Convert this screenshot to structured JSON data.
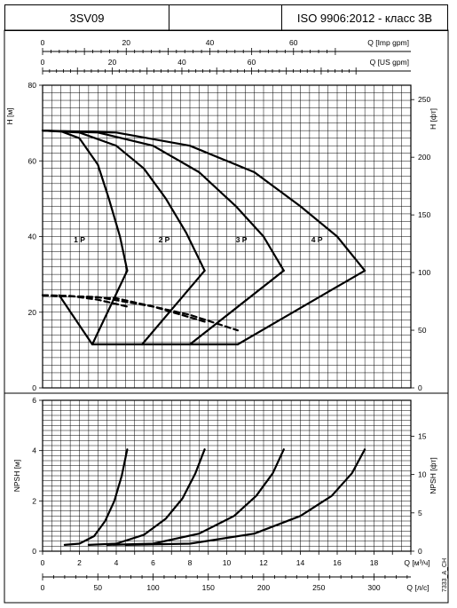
{
  "header": {
    "model": "3SV09",
    "middle": "",
    "standard": "ISO 9906:2012 - класс 3B"
  },
  "side_label": "7333_A_CH",
  "chart_data": [
    {
      "type": "line",
      "id": "head",
      "y_left_label": "H [м]",
      "y_right_label": "H [фт]",
      "ylim": [
        0,
        80
      ],
      "left_ticks": [
        0,
        20,
        40,
        60,
        80
      ],
      "right_ticks": [
        0,
        50,
        100,
        150,
        200,
        250
      ],
      "top_axes": [
        {
          "label": "Q [Imp gpm]",
          "ticks": [
            "0",
            "20",
            "40",
            "60"
          ],
          "values": [
            0,
            20,
            40,
            60
          ]
        },
        {
          "label": "Q [US gpm]",
          "ticks": [
            "0",
            "20",
            "40",
            "60"
          ],
          "values": [
            0,
            20,
            40,
            60
          ]
        }
      ],
      "curve_labels": [
        "1 P",
        "2 P",
        "3 P",
        "4 P"
      ],
      "grid": true,
      "series": [
        {
          "name": "1 P",
          "x": [
            0,
            1.0,
            2.0,
            3.0,
            3.6,
            4.2,
            4.6
          ],
          "y": [
            68,
            67.8,
            66,
            59,
            50,
            40,
            31
          ]
        },
        {
          "name": "2 P",
          "x": [
            0,
            2.0,
            4.0,
            5.5,
            6.7,
            7.8,
            8.8
          ],
          "y": [
            68,
            67.5,
            64,
            58,
            50,
            41,
            31
          ]
        },
        {
          "name": "3 P",
          "x": [
            0,
            3.0,
            6.0,
            8.5,
            10.5,
            12.0,
            13.1
          ],
          "y": [
            68,
            67.5,
            64,
            57,
            48,
            40,
            31
          ]
        },
        {
          "name": "4 P",
          "x": [
            0,
            4.0,
            8.0,
            11.5,
            14.0,
            16.0,
            17.5
          ],
          "y": [
            68,
            67.5,
            64,
            57,
            48,
            40,
            31
          ]
        },
        {
          "name": "efficiency-left",
          "x": [
            0.9,
            2.7,
            5.4,
            8.0,
            10.6
          ],
          "y": [
            24.5,
            11.5,
            11.5,
            11.5,
            11.5
          ]
        },
        {
          "name": "efficiency-right",
          "x": [
            2.7,
            4.6,
            5.4,
            8.8,
            8.0,
            13.1,
            10.6,
            17.5
          ],
          "y": [
            11.5,
            31,
            11.5,
            31,
            11.5,
            31,
            11.5,
            31
          ]
        }
      ],
      "dashed_series": [
        {
          "x": [
            0,
            1.5,
            3.0,
            4.6
          ],
          "y": [
            24.5,
            24.3,
            23.3,
            21.5
          ]
        },
        {
          "x": [
            0,
            3.0,
            6.0,
            8.8
          ],
          "y": [
            24.5,
            24.0,
            21.5,
            17.5
          ]
        },
        {
          "x": [
            0,
            4.0,
            8.0,
            10.6
          ],
          "y": [
            24.5,
            23.7,
            19.3,
            15.2
          ]
        }
      ]
    },
    {
      "type": "line",
      "id": "npsh",
      "y_left_label": "NPSH [м]",
      "y_right_label": "NPSH [фт]",
      "ylim": [
        0,
        6
      ],
      "left_ticks": [
        0,
        2,
        4,
        6
      ],
      "right_ticks": [
        0,
        5,
        10,
        15
      ],
      "x_label": "Q [м³/ч]",
      "x2_label": "Q [л/с]",
      "xlim": [
        0,
        20
      ],
      "x_ticks": [
        "0",
        "2",
        "4",
        "6",
        "8",
        "10",
        "12",
        "14",
        "16",
        "18"
      ],
      "x2_ticks": [
        "0",
        "50",
        "100",
        "150",
        "200",
        "250",
        "300"
      ],
      "grid": true,
      "series": [
        {
          "name": "1 P",
          "x": [
            1.2,
            2.0,
            2.8,
            3.4,
            3.9,
            4.3,
            4.6
          ],
          "y": [
            0.25,
            0.3,
            0.6,
            1.2,
            2.0,
            3.0,
            4.05
          ]
        },
        {
          "name": "2 P",
          "x": [
            2.5,
            4.0,
            5.5,
            6.7,
            7.6,
            8.3,
            8.8
          ],
          "y": [
            0.25,
            0.3,
            0.65,
            1.3,
            2.1,
            3.1,
            4.05
          ]
        },
        {
          "name": "3 P",
          "x": [
            3.5,
            6.0,
            8.5,
            10.4,
            11.6,
            12.5,
            13.1
          ],
          "y": [
            0.25,
            0.3,
            0.7,
            1.4,
            2.2,
            3.1,
            4.05
          ]
        },
        {
          "name": "4 P",
          "x": [
            4.5,
            8.0,
            11.5,
            14.0,
            15.7,
            16.8,
            17.5
          ],
          "y": [
            0.25,
            0.3,
            0.7,
            1.4,
            2.2,
            3.1,
            4.05
          ]
        }
      ]
    }
  ]
}
